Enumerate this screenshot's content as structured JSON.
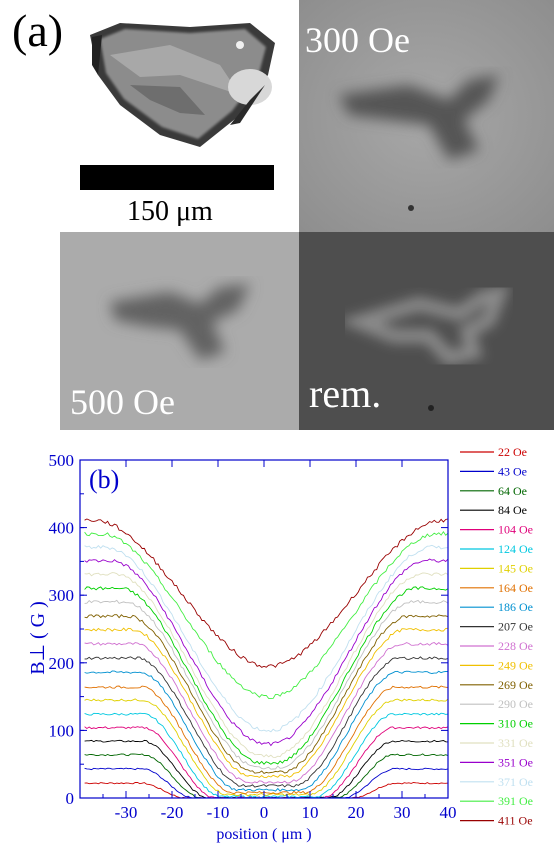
{
  "panel_a": {
    "label": "(a)",
    "scale_label": "150 μm",
    "fields": [
      "300 Oe",
      "500 Oe",
      "rem."
    ]
  },
  "chart_data": {
    "type": "line",
    "panel_label": "(b)",
    "xlabel": "position ( μm )",
    "ylabel": "B⊥ ( G )",
    "xlim": [
      -40,
      40
    ],
    "ylim": [
      0,
      500
    ],
    "xticks": [
      -30,
      -20,
      -10,
      0,
      10,
      20,
      30,
      40
    ],
    "yticks": [
      0,
      100,
      200,
      300,
      400,
      500
    ],
    "legend_position": "right-outside",
    "series": [
      {
        "name": "22 Oe",
        "color": "#cc0000",
        "edge": 22,
        "center": 0
      },
      {
        "name": "43 Oe",
        "color": "#0000cc",
        "edge": 43,
        "center": 0
      },
      {
        "name": "64 Oe",
        "color": "#006600",
        "edge": 64,
        "center": 0
      },
      {
        "name": "84 Oe",
        "color": "#000000",
        "edge": 84,
        "center": 0
      },
      {
        "name": "104 Oe",
        "color": "#e0007a",
        "edge": 104,
        "center": 0
      },
      {
        "name": "124 Oe",
        "color": "#00c8e0",
        "edge": 124,
        "center": 2
      },
      {
        "name": "145 Oe",
        "color": "#e0d000",
        "edge": 145,
        "center": 5
      },
      {
        "name": "164 Oe",
        "color": "#e07000",
        "edge": 164,
        "center": 8
      },
      {
        "name": "186 Oe",
        "color": "#0090d0",
        "edge": 186,
        "center": 12
      },
      {
        "name": "207 Oe",
        "color": "#333333",
        "edge": 207,
        "center": 18
      },
      {
        "name": "228 Oe",
        "color": "#d070d0",
        "edge": 228,
        "center": 24
      },
      {
        "name": "249 Oe",
        "color": "#f0c000",
        "edge": 249,
        "center": 32
      },
      {
        "name": "269 Oe",
        "color": "#806000",
        "edge": 269,
        "center": 38
      },
      {
        "name": "290 Oe",
        "color": "#c0c0c0",
        "edge": 290,
        "center": 45
      },
      {
        "name": "310 Oe",
        "color": "#00d000",
        "edge": 310,
        "center": 52
      },
      {
        "name": "331 Oe",
        "color": "#e0e0c0",
        "edge": 331,
        "center": 62
      },
      {
        "name": "351 Oe",
        "color": "#9900cc",
        "edge": 351,
        "center": 80
      },
      {
        "name": "371 Oe",
        "color": "#c0e0f0",
        "edge": 371,
        "center": 100
      },
      {
        "name": "391 Oe",
        "color": "#44ee44",
        "edge": 391,
        "center": 150
      },
      {
        "name": "411 Oe",
        "color": "#990000",
        "edge": 411,
        "center": 195
      }
    ]
  }
}
